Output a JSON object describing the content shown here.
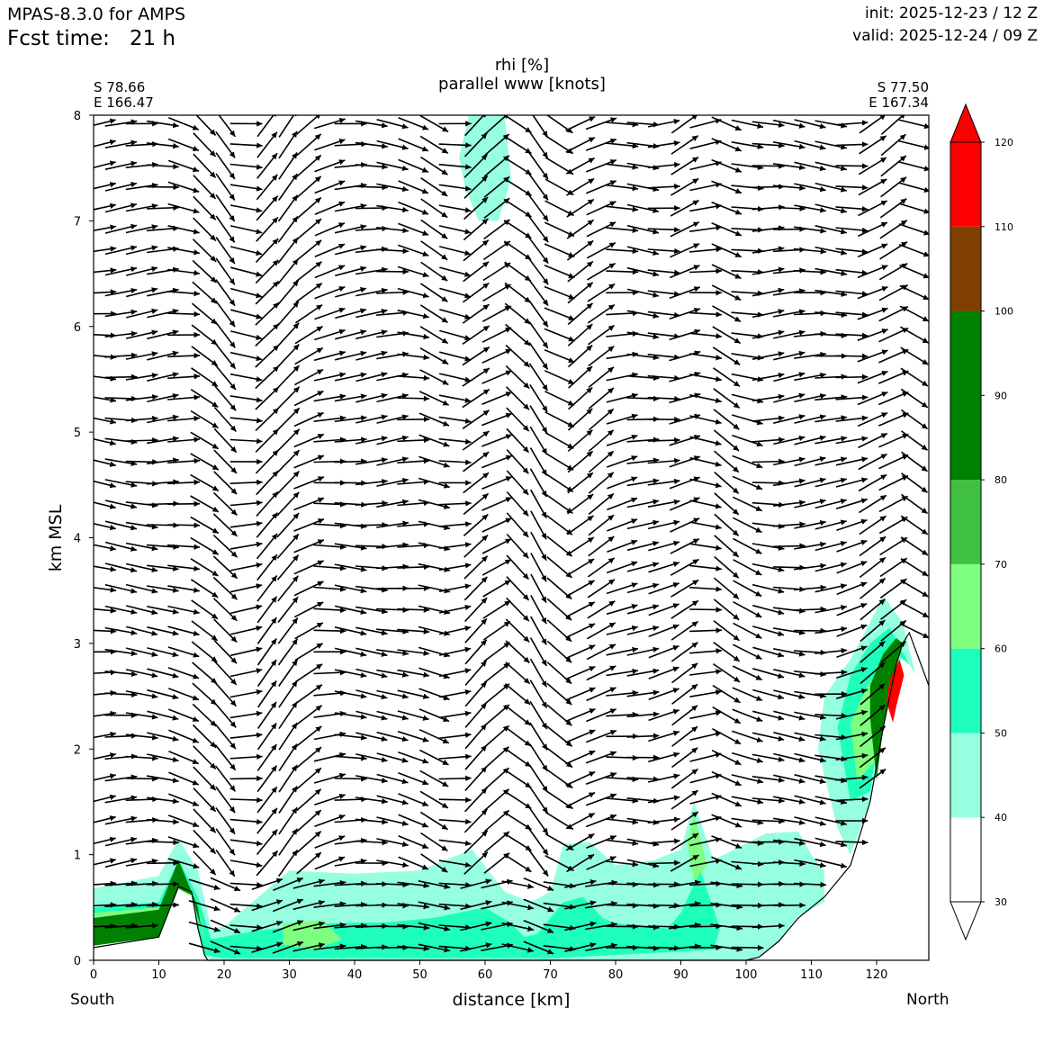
{
  "header": {
    "model": "MPAS-8.3.0 for AMPS",
    "fcst_label": "Fcst time:",
    "fcst_value": "21 h",
    "init": "init: 2025-12-23 / 12 Z",
    "valid": "valid: 2025-12-24 / 09 Z"
  },
  "cross_section": {
    "start_lat": "S 78.66",
    "start_lon": "E 166.47",
    "end_lat": "S 77.50",
    "end_lon": "E 167.34",
    "left_end": "South",
    "right_end": "North"
  },
  "chart_data": {
    "type": "heatmap",
    "title": "rhi [%]",
    "subtitle": "parallel www [knots]",
    "xlabel": "distance [km]",
    "ylabel": "km MSL",
    "xlim": [
      0,
      128
    ],
    "ylim": [
      0,
      8
    ],
    "xticks": [
      0,
      10,
      20,
      30,
      40,
      50,
      60,
      70,
      80,
      90,
      100,
      110,
      120
    ],
    "yticks": [
      0,
      1,
      2,
      3,
      4,
      5,
      6,
      7,
      8
    ],
    "colorbar": {
      "levels": [
        30,
        40,
        50,
        60,
        70,
        80,
        90,
        100,
        110,
        120
      ],
      "bands": [
        {
          "from": 30,
          "to": 40,
          "color": "#ffffff"
        },
        {
          "from": 40,
          "to": 50,
          "color": "#96ffdf"
        },
        {
          "from": 50,
          "to": 60,
          "color": "#1effbb"
        },
        {
          "from": 60,
          "to": 70,
          "color": "#7fff7f"
        },
        {
          "from": 70,
          "to": 80,
          "color": "#40c040"
        },
        {
          "from": 80,
          "to": 100,
          "color": "#008000"
        },
        {
          "from": 100,
          "to": 110,
          "color": "#804000"
        },
        {
          "from": 110,
          "to": 120,
          "color": "#ff0000"
        }
      ],
      "extend": "both"
    },
    "terrain": {
      "x": [
        0,
        10,
        13,
        15,
        16,
        17,
        17.5,
        18,
        20,
        30,
        50,
        70,
        90,
        100,
        102,
        105,
        108,
        112,
        116,
        119,
        121,
        123,
        124,
        125,
        128
      ],
      "y": [
        0.12,
        0.22,
        0.7,
        0.65,
        0.3,
        0.05,
        0,
        0,
        0,
        0,
        0,
        0,
        0,
        0,
        0.03,
        0.18,
        0.4,
        0.6,
        0.9,
        1.5,
        2.2,
        2.8,
        3.0,
        3.1,
        2.6
      ]
    },
    "rh_regions": [
      {
        "band": "40-50",
        "polygon": [
          [
            0,
            0.14
          ],
          [
            0,
            0.68
          ],
          [
            10,
            0.8
          ],
          [
            13,
            1.15
          ],
          [
            16,
            0.85
          ],
          [
            18,
            0.3
          ],
          [
            20,
            0.32
          ],
          [
            30,
            0.85
          ],
          [
            40,
            0.82
          ],
          [
            50,
            0.85
          ],
          [
            58,
            1.05
          ],
          [
            63,
            0.65
          ],
          [
            67,
            0.55
          ],
          [
            70,
            0.65
          ],
          [
            72,
            1.1
          ],
          [
            76,
            1.12
          ],
          [
            80,
            0.9
          ],
          [
            86,
            0.95
          ],
          [
            90,
            1.05
          ],
          [
            92,
            1.5
          ],
          [
            95,
            0.95
          ],
          [
            103,
            1.2
          ],
          [
            108,
            1.22
          ],
          [
            110,
            1.0
          ],
          [
            112,
            0.85
          ],
          [
            112,
            0.55
          ],
          [
            108,
            0.42
          ],
          [
            105,
            0.18
          ],
          [
            102,
            0.03
          ],
          [
            100,
            0
          ],
          [
            18,
            0
          ],
          [
            17,
            0.05
          ],
          [
            16,
            0.3
          ],
          [
            15,
            0.63
          ],
          [
            13,
            0.68
          ],
          [
            10,
            0.22
          ]
        ]
      },
      {
        "band": "40-50",
        "polygon": [
          [
            114,
            1.25
          ],
          [
            111,
            2.0
          ],
          [
            112,
            2.5
          ],
          [
            116,
            2.85
          ],
          [
            119,
            3.2
          ],
          [
            121,
            3.45
          ],
          [
            124,
            3.2
          ],
          [
            126,
            2.7
          ],
          [
            124,
            2.9
          ],
          [
            121,
            2.3
          ],
          [
            119,
            1.5
          ],
          [
            116,
            1.0
          ]
        ]
      },
      {
        "band": "40-50",
        "polygon": [
          [
            56,
            7.6
          ],
          [
            57.5,
            8
          ],
          [
            63,
            8
          ],
          [
            64,
            7.4
          ],
          [
            62,
            7.0
          ],
          [
            59,
            7.0
          ],
          [
            57,
            7.3
          ]
        ]
      },
      {
        "band": "50-60",
        "polygon": [
          [
            0,
            0.14
          ],
          [
            0,
            0.5
          ],
          [
            10,
            0.55
          ],
          [
            13,
            0.95
          ],
          [
            16,
            0.6
          ],
          [
            18,
            0.2
          ],
          [
            25,
            0.28
          ],
          [
            35,
            0.35
          ],
          [
            45,
            0.36
          ],
          [
            52,
            0.4
          ],
          [
            60,
            0.5
          ],
          [
            64,
            0.35
          ],
          [
            66,
            0.22
          ],
          [
            68,
            0.25
          ],
          [
            72,
            0.55
          ],
          [
            75,
            0.6
          ],
          [
            78,
            0.4
          ],
          [
            80,
            0.35
          ],
          [
            88,
            0.3
          ],
          [
            90,
            0.45
          ],
          [
            93,
            0.85
          ],
          [
            96,
            0.3
          ],
          [
            95,
            0.1
          ],
          [
            70,
            0.02
          ],
          [
            60,
            0.02
          ],
          [
            20,
            0.02
          ],
          [
            17,
            0.05
          ],
          [
            16,
            0.3
          ],
          [
            15,
            0.63
          ],
          [
            13,
            0.68
          ],
          [
            10,
            0.22
          ]
        ]
      },
      {
        "band": "50-60",
        "polygon": [
          [
            116,
            1.5
          ],
          [
            114,
            2.2
          ],
          [
            116,
            2.7
          ],
          [
            119,
            3.0
          ],
          [
            122,
            3.15
          ],
          [
            125,
            2.8
          ],
          [
            123,
            2.9
          ],
          [
            121,
            2.4
          ],
          [
            119,
            1.6
          ]
        ]
      },
      {
        "band": "60-70",
        "polygon": [
          [
            29,
            0.15
          ],
          [
            29,
            0.35
          ],
          [
            35,
            0.38
          ],
          [
            38,
            0.2
          ],
          [
            34,
            0.1
          ]
        ]
      },
      {
        "band": "60-70",
        "polygon": [
          [
            92,
            0.75
          ],
          [
            91,
            1.1
          ],
          [
            92,
            1.4
          ],
          [
            94,
            0.9
          ]
        ]
      },
      {
        "band": "60-70",
        "polygon": [
          [
            117,
            1.7
          ],
          [
            116,
            2.25
          ],
          [
            119,
            2.65
          ],
          [
            121,
            2.5
          ],
          [
            120,
            1.9
          ]
        ]
      },
      {
        "band": "60-70",
        "polygon": [
          [
            0,
            0.15
          ],
          [
            0,
            0.45
          ],
          [
            10,
            0.5
          ],
          [
            13,
            0.8
          ],
          [
            16,
            0.5
          ],
          [
            17,
            0.2
          ],
          [
            15,
            0.6
          ],
          [
            13,
            0.68
          ],
          [
            10,
            0.22
          ]
        ]
      },
      {
        "band": "80-100",
        "polygon": [
          [
            0,
            0.14
          ],
          [
            0,
            0.4
          ],
          [
            10,
            0.48
          ],
          [
            13,
            0.95
          ],
          [
            16,
            0.5
          ],
          [
            16.5,
            0.3
          ],
          [
            15,
            0.62
          ],
          [
            13,
            0.68
          ],
          [
            10,
            0.22
          ]
        ]
      },
      {
        "band": "80-100",
        "polygon": [
          [
            119,
            2.3
          ],
          [
            119,
            2.6
          ],
          [
            121,
            2.9
          ],
          [
            123,
            3.05
          ],
          [
            125,
            2.95
          ],
          [
            124,
            3.0
          ],
          [
            123,
            2.8
          ],
          [
            121,
            2.2
          ],
          [
            120,
            1.7
          ]
        ]
      },
      {
        "band": "110-120",
        "polygon": [
          [
            121.5,
            2.45
          ],
          [
            122,
            2.65
          ],
          [
            123.5,
            2.85
          ],
          [
            124.2,
            2.7
          ],
          [
            123,
            2.4
          ],
          [
            122.5,
            2.25
          ]
        ]
      }
    ],
    "wind_field": "parallel wind vectors on a regular grid, mostly westerly (south-to-north) at ~1-3 km height with wave-like vertical motion"
  }
}
